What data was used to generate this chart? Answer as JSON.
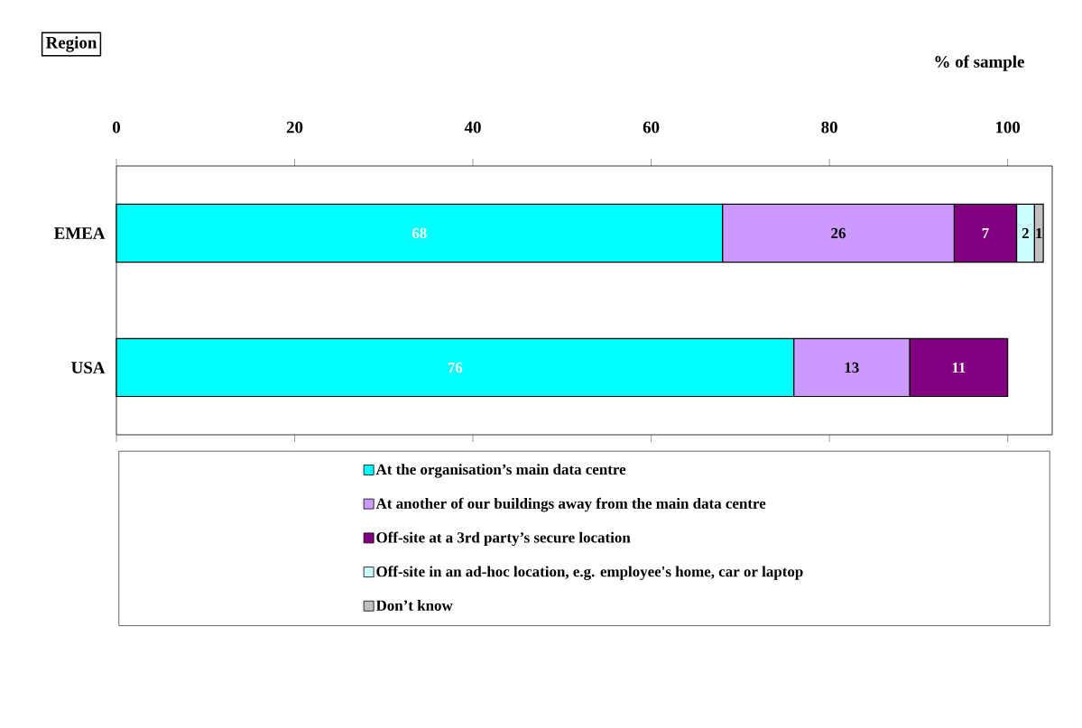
{
  "chart_data": {
    "type": "bar",
    "orientation": "horizontal",
    "stacked": true,
    "data_labels": true,
    "legend": "bottom",
    "ylabel": "Region",
    "xlabel": "% of sample",
    "categories": [
      "EMEA",
      "USA"
    ],
    "xlim": [
      0,
      105
    ],
    "xticks": [
      0,
      20,
      40,
      60,
      80,
      100
    ],
    "series": [
      {
        "name": "At the organisation’s main data centre",
        "color": "#00ffff",
        "values": [
          68,
          76
        ]
      },
      {
        "name": "At another of our buildings away from the main data centre",
        "color": "#cc99ff",
        "values": [
          26,
          13
        ]
      },
      {
        "name": "Off-site at a 3rd party’s secure location",
        "color": "#800080",
        "values": [
          7,
          11
        ]
      },
      {
        "name": "Off-site in an ad-hoc location, e.g. employee's home, car or laptop",
        "color": "#ccffff",
        "values": [
          2,
          null
        ]
      },
      {
        "name": "Don’t know",
        "color": "#c0c0c0",
        "values": [
          1,
          null
        ]
      }
    ]
  }
}
